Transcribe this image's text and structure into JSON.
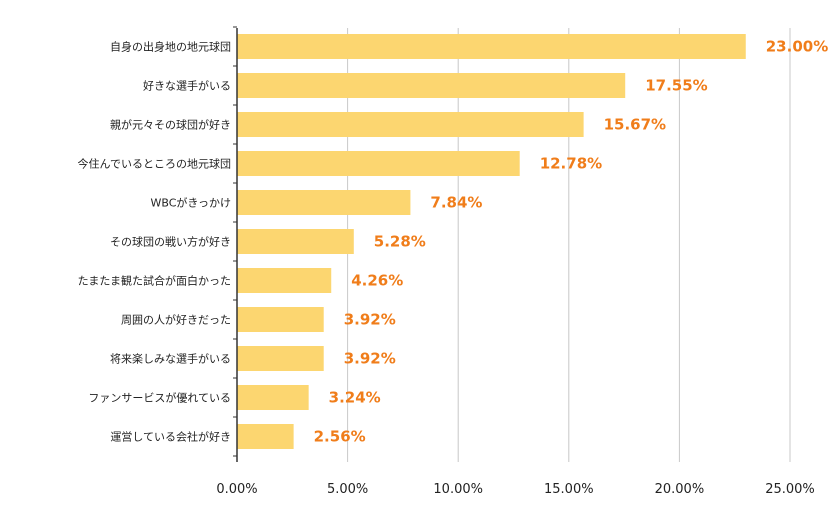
{
  "chart_data": {
    "type": "bar",
    "orientation": "horizontal",
    "title": "",
    "xlabel": "",
    "ylabel": "",
    "categories": [
      "自身の出身地の地元球団",
      "好きな選手がいる",
      "親が元々その球団が好き",
      "今住んでいるところの地元球団",
      "WBCがきっかけ",
      "その球団の戦い方が好き",
      "たまたま観た試合が面白かった",
      "周囲の人が好きだった",
      "将来楽しみな選手がいる",
      "ファンサービスが優れている",
      "運営している会社が好き"
    ],
    "values": [
      23.0,
      17.55,
      15.67,
      12.78,
      7.84,
      5.28,
      4.26,
      3.92,
      3.92,
      3.24,
      2.56
    ],
    "data_labels": [
      "23.00%",
      "17.55%",
      "15.67%",
      "12.78%",
      "7.84%",
      "5.28%",
      "4.26%",
      "3.92%",
      "3.92%",
      "3.24%",
      "2.56%"
    ],
    "xlim": [
      0,
      25
    ],
    "ticks": [
      0,
      5,
      10,
      15,
      20,
      25
    ],
    "tick_labels": [
      "0.00%",
      "5.00%",
      "10.00%",
      "15.00%",
      "20.00%",
      "25.00%"
    ],
    "grid": "vertical",
    "legend": "none",
    "colors": {
      "bar": "#fcd670",
      "data_label": "#f07d1a",
      "grid": "#c8c8c8",
      "axis": "#333333"
    }
  }
}
